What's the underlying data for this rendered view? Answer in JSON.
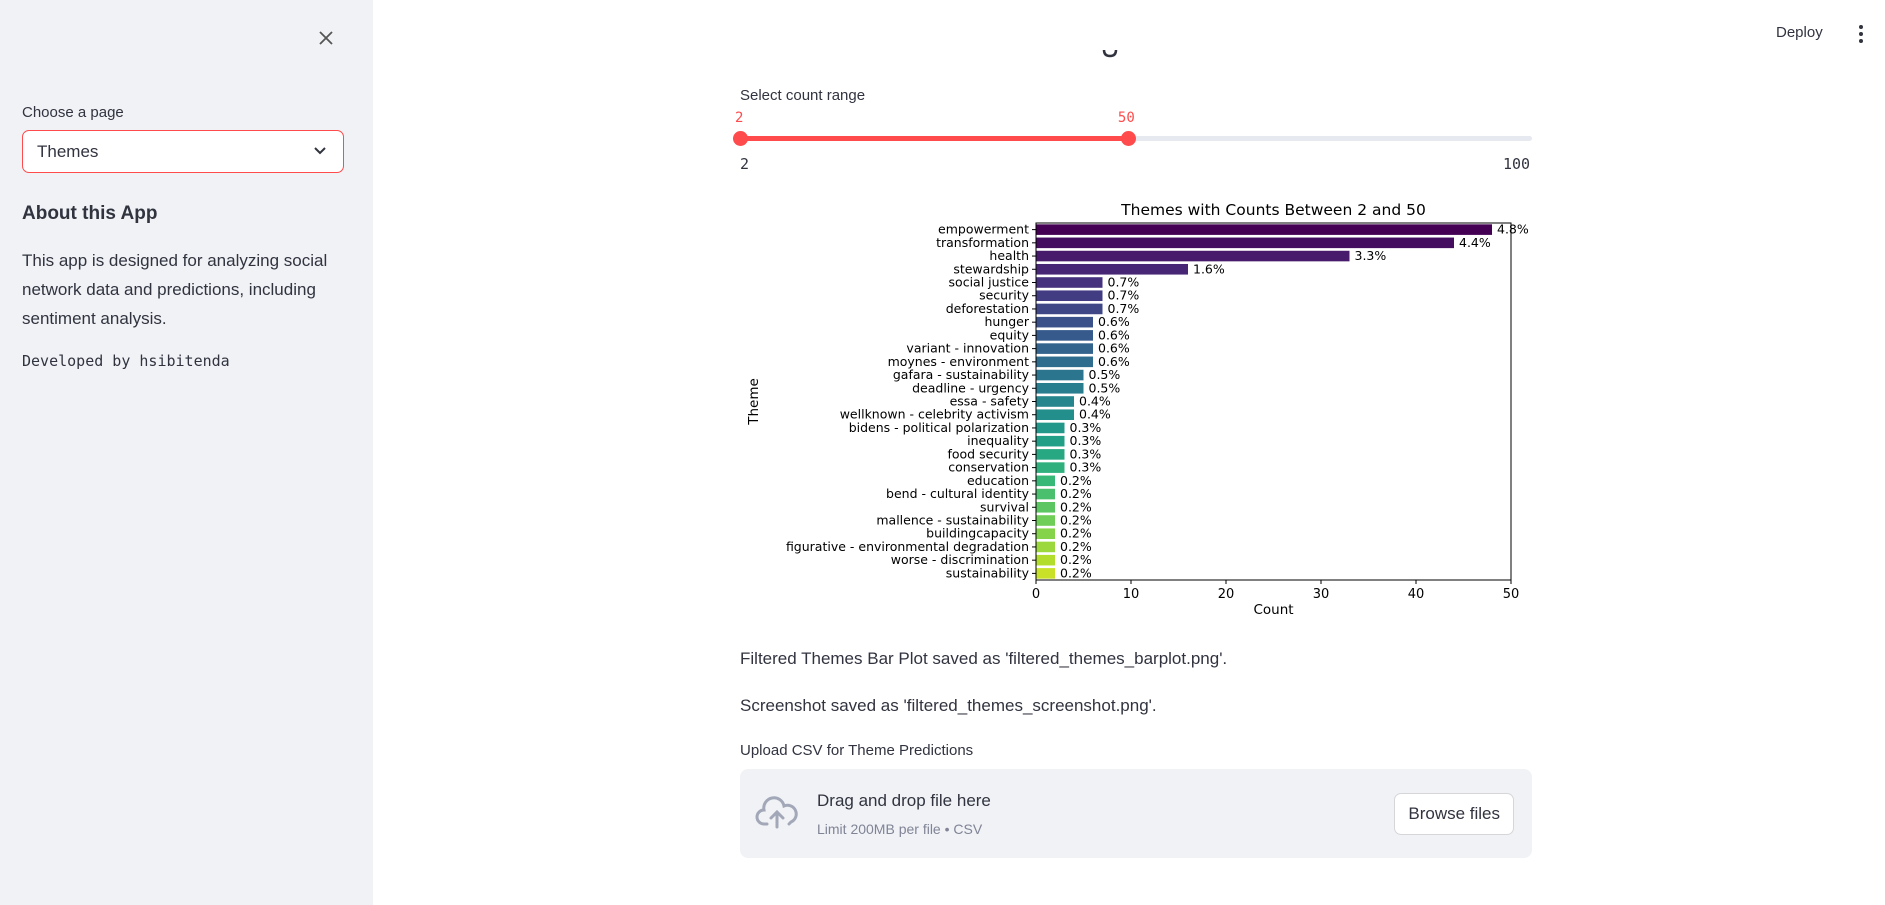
{
  "sidebar": {
    "page_select_label": "Choose a page",
    "page_select_value": "Themes",
    "about_heading": "About this App",
    "about_text": "This app is designed for analyzing social network data and predictions, including sentiment analysis.",
    "developer": "Developed by hsibitenda"
  },
  "header": {
    "deploy_label": "Deploy"
  },
  "slider": {
    "label": "Select count range",
    "low": 2,
    "high": 50,
    "low_label": "2",
    "high_label": "50",
    "min": 2,
    "max": 100,
    "min_label": "2",
    "max_label": "100"
  },
  "chart_data": {
    "type": "bar",
    "orientation": "horizontal",
    "title": "Themes with Counts Between 2 and 50",
    "xlabel": "Count",
    "ylabel": "Theme",
    "xlim": [
      0,
      50
    ],
    "xticks": [
      "0",
      "10",
      "20",
      "30",
      "40",
      "50"
    ],
    "grid": false,
    "categories": [
      "empowerment",
      "transformation",
      "health",
      "stewardship",
      "social justice",
      "security",
      "deforestation",
      "hunger",
      "equity",
      "variant - innovation",
      "moynes - environment",
      "gafara - sustainability",
      "deadline - urgency",
      "essa - safety",
      "wellknown - celebrity activism",
      "bidens - political polarization",
      "inequality",
      "food security",
      "conservation",
      "education",
      "bend - cultural identity",
      "survival",
      "mallence - sustainability",
      "buildingcapacity",
      "figurative - environmental degradation",
      "worse - discrimination",
      "sustainability"
    ],
    "values": [
      48,
      44,
      33,
      16,
      7,
      7,
      7,
      6,
      6,
      6,
      6,
      5,
      5,
      4,
      4,
      3,
      3,
      3,
      3,
      2,
      2,
      2,
      2,
      2,
      2,
      2,
      2
    ],
    "data_labels": [
      "4.8%",
      "4.4%",
      "3.3%",
      "1.6%",
      "0.7%",
      "0.7%",
      "0.7%",
      "0.6%",
      "0.6%",
      "0.6%",
      "0.6%",
      "0.5%",
      "0.5%",
      "0.4%",
      "0.4%",
      "0.3%",
      "0.3%",
      "0.3%",
      "0.3%",
      "0.2%",
      "0.2%",
      "0.2%",
      "0.2%",
      "0.2%",
      "0.2%",
      "0.2%",
      "0.2%"
    ],
    "colormap": "viridis"
  },
  "messages": {
    "barplot_saved": "Filtered Themes Bar Plot saved as 'filtered_themes_barplot.png'.",
    "screenshot_saved": "Screenshot saved as 'filtered_themes_screenshot.png'."
  },
  "upload": {
    "label": "Upload CSV for Theme Predictions",
    "drop_title": "Drag and drop file here",
    "drop_limit": "Limit 200MB per file • CSV",
    "browse_label": "Browse files"
  },
  "colors": {
    "accent": "#ff4b4b",
    "sidebar_bg": "#f0f2f6",
    "text": "#31333f"
  }
}
